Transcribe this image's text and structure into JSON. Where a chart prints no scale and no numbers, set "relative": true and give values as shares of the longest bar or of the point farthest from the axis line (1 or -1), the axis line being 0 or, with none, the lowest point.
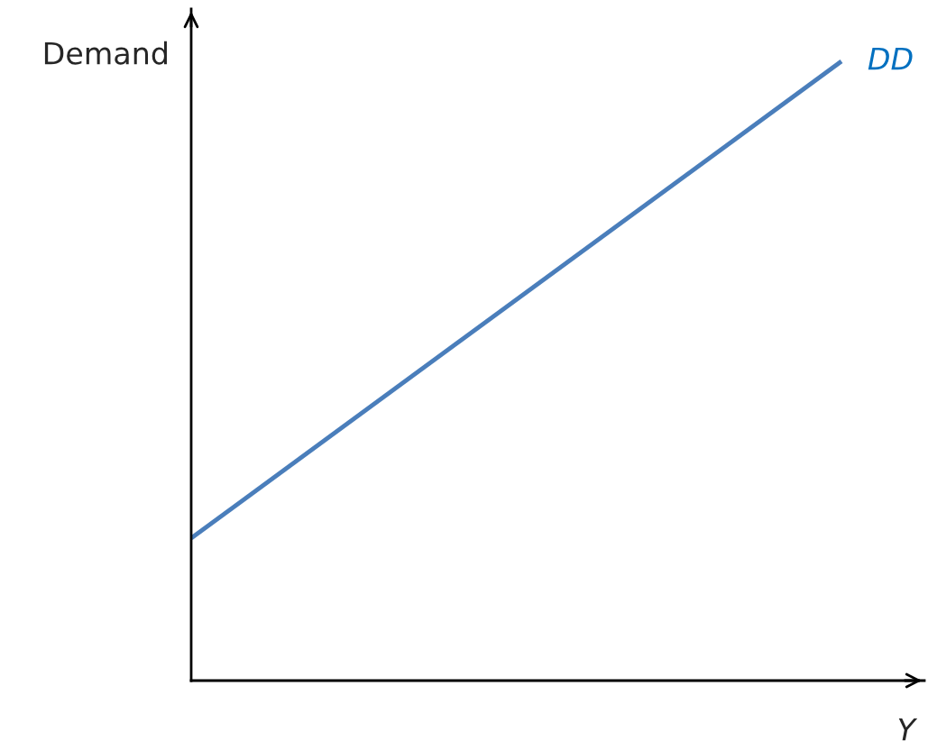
{
  "chart_data": {
    "type": "line",
    "relative": true,
    "xlabel": "Y",
    "ylabel": "Demand",
    "categories": [
      null,
      null
    ],
    "series": [
      {
        "name": "DD",
        "color": "#4a7ebb",
        "values": [
          0.23,
          1
        ]
      }
    ],
    "grid": false,
    "marker": "none",
    "line_style": "solid"
  }
}
